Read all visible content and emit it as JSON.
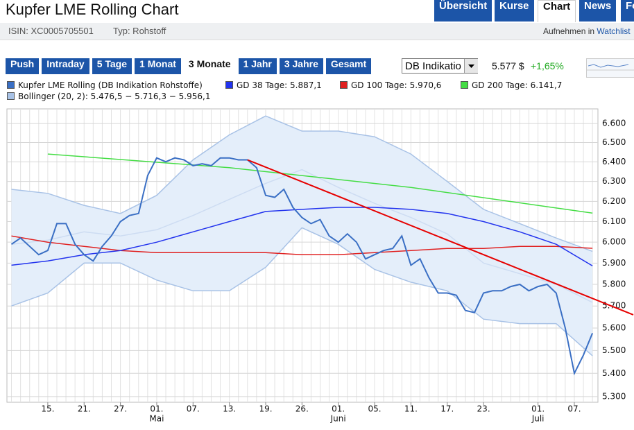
{
  "header": {
    "title": "Kupfer LME Rolling Chart",
    "tabs": [
      "Übersicht",
      "Kurse",
      "Chart",
      "News",
      "Fo"
    ],
    "active_tab": 2,
    "isin": "ISIN: XC0005705501",
    "typ": "Typ: Rohstoff",
    "watchlist_prefix": "Aufnehmen in",
    "watchlist_link": "Watchlist"
  },
  "range_buttons": {
    "items": [
      "Push",
      "Intraday",
      "5 Tage",
      "1 Monat",
      "3 Monate",
      "1 Jahr",
      "3 Jahre",
      "Gesamt"
    ],
    "active": 4
  },
  "select": "DB Indikatio",
  "quote": {
    "price": "5.577 $",
    "change": "+1,65%"
  },
  "chart_data": {
    "type": "line",
    "yscale": "log",
    "grid": true,
    "xlim": [
      -0.5,
      64.6
    ],
    "ylim": [
      5.276,
      6.678
    ],
    "xticks": [
      {
        "value": 4,
        "label": "15."
      },
      {
        "value": 8,
        "label": "21."
      },
      {
        "value": 12,
        "label": "27."
      },
      {
        "value": 16,
        "label": "01."
      },
      {
        "value": 20,
        "label": "07."
      },
      {
        "value": 24,
        "label": "13."
      },
      {
        "value": 28,
        "label": "19."
      },
      {
        "value": 32,
        "label": "26."
      },
      {
        "value": 36,
        "label": "01."
      },
      {
        "value": 40,
        "label": "05."
      },
      {
        "value": 44,
        "label": "11."
      },
      {
        "value": 48,
        "label": "17."
      },
      {
        "value": 52,
        "label": "23."
      },
      {
        "value": 58,
        "label": "01."
      },
      {
        "value": 62,
        "label": "07."
      }
    ],
    "month_labels": [
      {
        "value": 16,
        "label": "Mai"
      },
      {
        "value": 36,
        "label": "Juni"
      },
      {
        "value": 58,
        "label": "Juli"
      }
    ],
    "yticks": [
      {
        "value": 6.6,
        "label": "6.600"
      },
      {
        "value": 6.5,
        "label": "6.500"
      },
      {
        "value": 6.4,
        "label": "6.400"
      },
      {
        "value": 6.3,
        "label": "6.300"
      },
      {
        "value": 6.2,
        "label": "6.200"
      },
      {
        "value": 6.1,
        "label": "6.100"
      },
      {
        "value": 6.0,
        "label": "6.000"
      },
      {
        "value": 5.9,
        "label": "5.900"
      },
      {
        "value": 5.8,
        "label": "5.800"
      },
      {
        "value": 5.7,
        "label": "5.700"
      },
      {
        "value": 5.6,
        "label": "5.600"
      },
      {
        "value": 5.5,
        "label": "5.500"
      },
      {
        "value": 5.4,
        "label": "5.400"
      },
      {
        "value": 5.3,
        "label": "5.300"
      }
    ],
    "band": {
      "name": "Bollinger (20, 2): 5.476,5 − 5.716,3 − 5.956,1",
      "color": "#a8c2e6",
      "x": [
        0,
        4,
        8,
        12,
        16,
        20,
        24,
        28,
        32,
        36,
        40,
        44,
        48,
        52,
        56,
        60,
        64
      ],
      "lower": [
        5.7,
        5.76,
        5.9,
        5.9,
        5.82,
        5.77,
        5.77,
        5.88,
        6.07,
        5.99,
        5.87,
        5.81,
        5.77,
        5.64,
        5.62,
        5.62,
        5.4765
      ],
      "middle": [
        5.99,
        6.01,
        6.05,
        6.03,
        6.06,
        6.13,
        6.21,
        6.29,
        6.36,
        6.27,
        6.19,
        6.12,
        6.04,
        5.9,
        5.85,
        5.8,
        5.7163
      ],
      "upper": [
        6.26,
        6.24,
        6.18,
        6.14,
        6.23,
        6.41,
        6.54,
        6.64,
        6.56,
        6.56,
        6.53,
        6.44,
        6.3,
        6.16,
        6.09,
        6.02,
        5.9561
      ]
    },
    "series": [
      {
        "name": "Kupfer LME Rolling (DB Indikation Rohstoffe)",
        "color": "#3a6fc4",
        "x": [
          0,
          1,
          2,
          3,
          4,
          5,
          6,
          7,
          8,
          9,
          10,
          11,
          12,
          13,
          14,
          15,
          16,
          17,
          18,
          19,
          20,
          21,
          22,
          23,
          24,
          25,
          26,
          27,
          28,
          29,
          30,
          31,
          32,
          33,
          34,
          35,
          36,
          37,
          38,
          39,
          40,
          41,
          42,
          43,
          44,
          45,
          46,
          47,
          48,
          49,
          50,
          51,
          52,
          53,
          54,
          55,
          56,
          57,
          58,
          59,
          60,
          61,
          62,
          63,
          64
        ],
        "values": [
          5.99,
          6.02,
          5.98,
          5.94,
          5.96,
          6.09,
          6.09,
          5.99,
          5.94,
          5.91,
          5.98,
          6.03,
          6.1,
          6.13,
          6.14,
          6.33,
          6.42,
          6.4,
          6.42,
          6.41,
          6.38,
          6.39,
          6.38,
          6.42,
          6.42,
          6.41,
          6.41,
          6.37,
          6.23,
          6.22,
          6.26,
          6.17,
          6.12,
          6.09,
          6.11,
          6.03,
          6.0,
          6.04,
          6.0,
          5.92,
          5.94,
          5.96,
          5.97,
          6.03,
          5.89,
          5.92,
          5.83,
          5.76,
          5.76,
          5.75,
          5.68,
          5.67,
          5.76,
          5.77,
          5.77,
          5.79,
          5.8,
          5.77,
          5.79,
          5.8,
          5.76,
          5.6,
          5.4,
          5.48,
          5.577
        ]
      },
      {
        "name": "GD 38 Tage: 5.887,1",
        "color": "#2233ee",
        "x": [
          0,
          4,
          8,
          12,
          16,
          20,
          24,
          28,
          32,
          36,
          40,
          44,
          48,
          52,
          56,
          60,
          64
        ],
        "values": [
          5.89,
          5.91,
          5.94,
          5.96,
          6.0,
          6.05,
          6.1,
          6.15,
          6.16,
          6.17,
          6.17,
          6.16,
          6.14,
          6.1,
          6.05,
          5.99,
          5.8871
        ]
      },
      {
        "name": "GD 100 Tage: 5.970,6",
        "color": "#e02020",
        "x": [
          0,
          4,
          8,
          12,
          16,
          20,
          24,
          28,
          32,
          36,
          40,
          44,
          48,
          52,
          56,
          60,
          64
        ],
        "values": [
          6.03,
          6.0,
          5.98,
          5.96,
          5.95,
          5.95,
          5.95,
          5.95,
          5.94,
          5.94,
          5.95,
          5.96,
          5.97,
          5.97,
          5.98,
          5.98,
          5.9706
        ]
      },
      {
        "name": "GD 200 Tage: 6.141,7",
        "color": "#44dd44",
        "x": [
          4,
          24,
          44,
          64
        ],
        "values": [
          6.44,
          6.37,
          6.27,
          6.1417
        ]
      }
    ],
    "trendline": {
      "x": [
        26,
        68.5
      ],
      "values": [
        6.41,
        5.66
      ],
      "color": "#e60000"
    }
  }
}
